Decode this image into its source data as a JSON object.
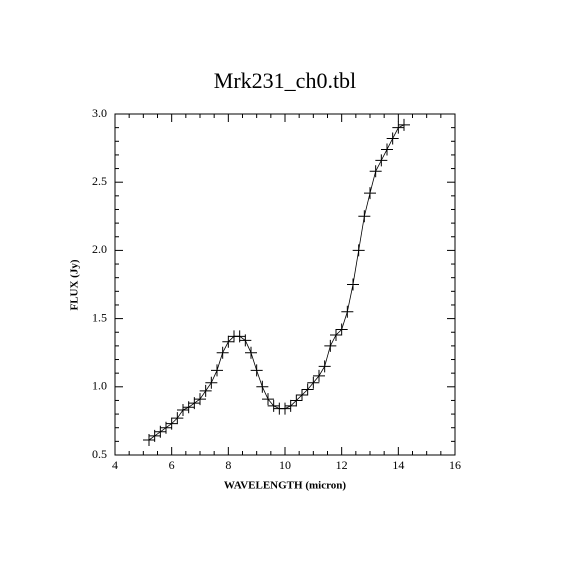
{
  "chart_data": {
    "type": "scatter",
    "title": "Mrk231_ch0.tbl",
    "x_label": "WAVELENGTH (micron)",
    "y_label": "FLUX (Jy)",
    "xlim": [
      4,
      16
    ],
    "ylim": [
      0.5,
      3.0
    ],
    "xticks": [
      4,
      6,
      8,
      10,
      12,
      14,
      16
    ],
    "yticks": [
      {
        "value": 0.5,
        "label": "0.5"
      },
      {
        "value": 1.0,
        "label": "1.0"
      },
      1.5,
      {
        "value": 2.0,
        "label": "2.0"
      },
      2.5,
      {
        "value": 3.0,
        "label": "3.0"
      }
    ],
    "color": "#000000",
    "series": [
      {
        "name": "Mrk231_ch0",
        "color": "#000000",
        "x": [
          5.2,
          5.4,
          5.6,
          5.8,
          6.0,
          6.2,
          6.4,
          6.6,
          6.8,
          7.0,
          7.2,
          7.4,
          7.6,
          7.8,
          8.0,
          8.2,
          8.4,
          8.6,
          8.8,
          9.0,
          9.2,
          9.4,
          9.6,
          9.8,
          10.0,
          10.2,
          10.4,
          10.6,
          10.8,
          11.0,
          11.2,
          11.4,
          11.6,
          11.8,
          12.0,
          12.2,
          12.4,
          12.6,
          12.8,
          13.0,
          13.2,
          13.4,
          13.6,
          13.8,
          14.0,
          14.2
        ],
        "values": [
          0.61,
          0.64,
          0.67,
          0.7,
          0.73,
          0.77,
          0.83,
          0.85,
          0.88,
          0.91,
          0.97,
          1.03,
          1.12,
          1.25,
          1.33,
          1.37,
          1.37,
          1.34,
          1.25,
          1.12,
          1.0,
          0.91,
          0.86,
          0.84,
          0.84,
          0.86,
          0.9,
          0.94,
          0.98,
          1.03,
          1.08,
          1.15,
          1.3,
          1.38,
          1.42,
          1.55,
          1.75,
          2.0,
          2.25,
          2.42,
          2.58,
          2.66,
          2.74,
          2.82,
          2.9,
          2.92
        ]
      }
    ]
  }
}
